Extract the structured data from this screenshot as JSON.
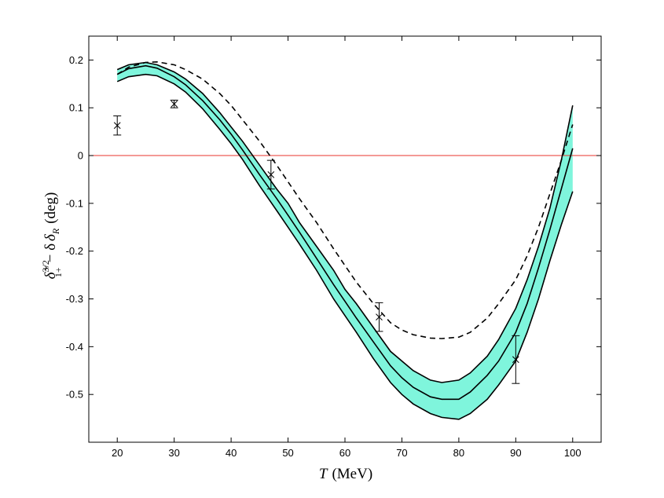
{
  "chart_data": {
    "type": "line",
    "title": "",
    "xlabel_symbol": "T",
    "xlabel_unit": "(MeV)",
    "ylabel_main": "δ̃",
    "ylabel_sup": "3/2",
    "ylabel_sub": "1+",
    "ylabel_rest": "− δ",
    "ylabel_rest_sub": "R",
    "ylabel_unit": "(deg)",
    "xlim": [
      15,
      105
    ],
    "ylim": [
      -0.6,
      0.25
    ],
    "xticks": [
      20,
      30,
      40,
      50,
      60,
      70,
      80,
      90,
      100
    ],
    "xtick_labels": [
      "20",
      "30",
      "40",
      "50",
      "60",
      "70",
      "80",
      "90",
      "100"
    ],
    "yticks": [
      0.2,
      0.1,
      0,
      -0.1,
      -0.2,
      -0.3,
      -0.4,
      -0.5
    ],
    "ytick_labels": [
      "0.2",
      "0.1",
      "0",
      "-0.1",
      "-0.2",
      "-0.3",
      "-0.4",
      "-0.5"
    ],
    "x": [
      20,
      22,
      25,
      27,
      30,
      32,
      35,
      38,
      40,
      42,
      45,
      48,
      50,
      52,
      55,
      58,
      60,
      62,
      65,
      68,
      70,
      72,
      75,
      77,
      80,
      82,
      85,
      87,
      90,
      92,
      94,
      96,
      98,
      100
    ],
    "series": [
      {
        "name": "band-upper",
        "values": [
          0.18,
          0.19,
          0.195,
          0.19,
          0.175,
          0.16,
          0.13,
          0.09,
          0.06,
          0.03,
          -0.02,
          -0.07,
          -0.1,
          -0.14,
          -0.19,
          -0.24,
          -0.28,
          -0.31,
          -0.36,
          -0.41,
          -0.43,
          -0.45,
          -0.47,
          -0.475,
          -0.47,
          -0.455,
          -0.42,
          -0.385,
          -0.32,
          -0.26,
          -0.19,
          -0.11,
          -0.01,
          0.105
        ]
      },
      {
        "name": "central",
        "values": [
          0.17,
          0.182,
          0.188,
          0.183,
          0.165,
          0.148,
          0.115,
          0.075,
          0.045,
          0.012,
          -0.04,
          -0.09,
          -0.125,
          -0.16,
          -0.215,
          -0.27,
          -0.305,
          -0.34,
          -0.39,
          -0.44,
          -0.465,
          -0.485,
          -0.505,
          -0.51,
          -0.51,
          -0.495,
          -0.46,
          -0.43,
          -0.37,
          -0.31,
          -0.235,
          -0.155,
          -0.07,
          0.015
        ]
      },
      {
        "name": "band-lower",
        "values": [
          0.155,
          0.165,
          0.17,
          0.167,
          0.15,
          0.133,
          0.098,
          0.055,
          0.025,
          -0.008,
          -0.063,
          -0.115,
          -0.15,
          -0.185,
          -0.24,
          -0.3,
          -0.335,
          -0.37,
          -0.425,
          -0.475,
          -0.5,
          -0.52,
          -0.54,
          -0.548,
          -0.552,
          -0.54,
          -0.51,
          -0.48,
          -0.43,
          -0.37,
          -0.3,
          -0.22,
          -0.145,
          -0.075
        ]
      },
      {
        "name": "dashed",
        "values": [
          0.17,
          0.185,
          0.195,
          0.196,
          0.19,
          0.18,
          0.16,
          0.13,
          0.105,
          0.075,
          0.03,
          -0.02,
          -0.055,
          -0.09,
          -0.14,
          -0.195,
          -0.23,
          -0.265,
          -0.31,
          -0.35,
          -0.365,
          -0.375,
          -0.382,
          -0.383,
          -0.38,
          -0.37,
          -0.34,
          -0.31,
          -0.26,
          -0.21,
          -0.15,
          -0.08,
          -0.01,
          0.065
        ]
      }
    ],
    "reference_line": {
      "y": 0,
      "color": "#e8352e"
    },
    "data_points": [
      {
        "x": 20,
        "y": 0.063,
        "err": 0.02
      },
      {
        "x": 30,
        "y": 0.108,
        "err": 0.008
      },
      {
        "x": 47,
        "y": -0.04,
        "err": 0.03
      },
      {
        "x": 66,
        "y": -0.338,
        "err": 0.03
      },
      {
        "x": 90,
        "y": -0.427,
        "err": 0.05
      }
    ],
    "colors": {
      "band_fill": "#7ff5dc",
      "line": "#000000",
      "reference": "#e8352e"
    }
  }
}
